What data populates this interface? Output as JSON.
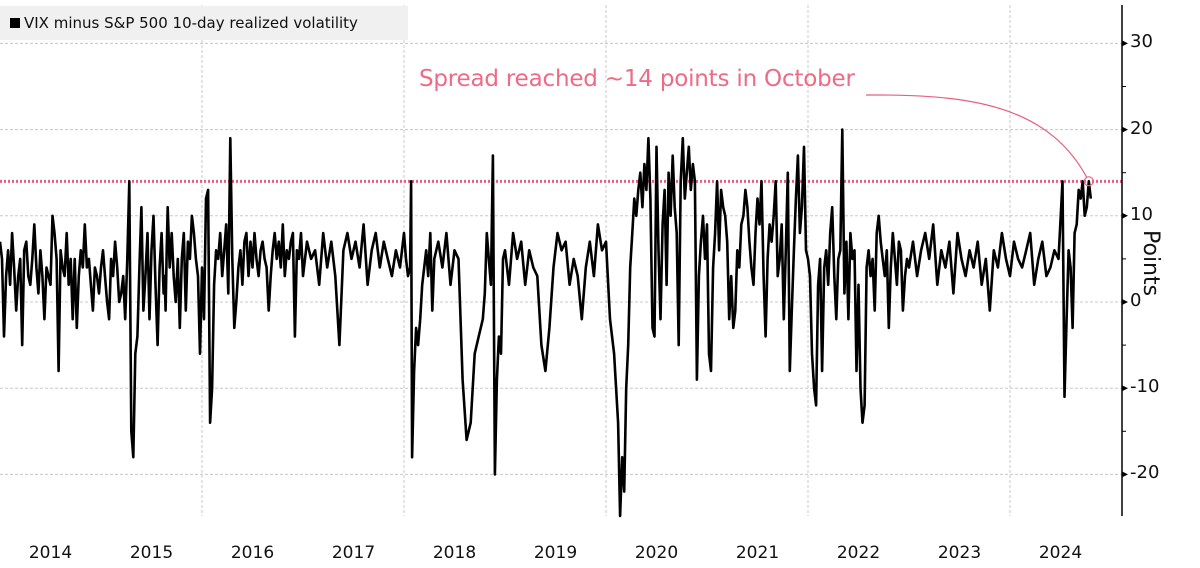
{
  "chart_data": {
    "type": "line",
    "title": "",
    "legend": {
      "entries": [
        "VIX minus S&P 500 10-day realized volatility"
      ],
      "placement": "top-left"
    },
    "xlabel": "",
    "ylabel": "Points",
    "xlim": [
      2014.0,
      2024.95
    ],
    "ylim": [
      -25,
      35
    ],
    "x_ticks": [
      "2014",
      "2015",
      "2016",
      "2017",
      "2018",
      "2019",
      "2020",
      "2021",
      "2022",
      "2023",
      "2024"
    ],
    "y_ticks": [
      30,
      20,
      10,
      0,
      -10,
      -20
    ],
    "y_tick_labels": [
      "30",
      "20",
      "10",
      "0",
      "-10",
      "-20"
    ],
    "grid": true,
    "reference_line": {
      "value": 14,
      "style": "dotted",
      "color": "#e8607e"
    },
    "annotation": {
      "text": "Spread reached ~14 points in October",
      "target": {
        "x": 2024.78,
        "y": 14
      },
      "color": "#e8607e"
    },
    "series": [
      {
        "name": "VIX minus S&P 500 10-day realized volatility",
        "color": "#000000",
        "x": [
          2014.0,
          2014.02,
          2014.04,
          2014.06,
          2014.08,
          2014.1,
          2014.12,
          2014.14,
          2014.16,
          2014.18,
          2014.2,
          2014.22,
          2014.24,
          2014.26,
          2014.28,
          2014.3,
          2014.32,
          2014.34,
          2014.36,
          2014.38,
          2014.4,
          2014.42,
          2014.44,
          2014.46,
          2014.48,
          2014.5,
          2014.52,
          2014.54,
          2014.56,
          2014.58,
          2014.6,
          2014.62,
          2014.64,
          2014.66,
          2014.68,
          2014.7,
          2014.72,
          2014.74,
          2014.76,
          2014.78,
          2014.8,
          2014.82,
          2014.84,
          2014.86,
          2014.88,
          2014.9,
          2014.92,
          2014.94,
          2014.96,
          2014.98,
          2015.0,
          2015.02,
          2015.04,
          2015.06,
          2015.08,
          2015.1,
          2015.12,
          2015.14,
          2015.16,
          2015.18,
          2015.2,
          2015.22,
          2015.24,
          2015.26,
          2015.28,
          2015.3,
          2015.32,
          2015.34,
          2015.36,
          2015.38,
          2015.4,
          2015.42,
          2015.44,
          2015.46,
          2015.48,
          2015.5,
          2015.52,
          2015.54,
          2015.56,
          2015.58,
          2015.6,
          2015.62,
          2015.63,
          2015.64,
          2015.65,
          2015.66,
          2015.68,
          2015.7,
          2015.72,
          2015.74,
          2015.76,
          2015.78,
          2015.8,
          2015.82,
          2015.84,
          2015.86,
          2015.88,
          2015.9,
          2015.92,
          2015.94,
          2015.96,
          2015.98,
          2016.0,
          2016.02,
          2016.04,
          2016.06,
          2016.08,
          2016.1,
          2016.12,
          2016.14,
          2016.16,
          2016.18,
          2016.2,
          2016.22,
          2016.24,
          2016.26,
          2016.28,
          2016.3,
          2016.32,
          2016.34,
          2016.36,
          2016.38,
          2016.4,
          2016.42,
          2016.44,
          2016.46,
          2016.48,
          2016.5,
          2016.52,
          2016.54,
          2016.56,
          2016.58,
          2016.6,
          2016.62,
          2016.64,
          2016.66,
          2016.68,
          2016.7,
          2016.72,
          2016.74,
          2016.76,
          2016.78,
          2016.8,
          2016.82,
          2016.84,
          2016.86,
          2016.88,
          2016.9,
          2016.92,
          2016.94,
          2016.96,
          2016.98,
          2017.0,
          2017.04,
          2017.08,
          2017.12,
          2017.16,
          2017.2,
          2017.24,
          2017.28,
          2017.32,
          2017.36,
          2017.4,
          2017.44,
          2017.48,
          2017.52,
          2017.56,
          2017.6,
          2017.64,
          2017.68,
          2017.72,
          2017.76,
          2017.8,
          2017.84,
          2017.88,
          2017.92,
          2017.96,
          2018.0,
          2018.02,
          2018.04,
          2018.06,
          2018.07,
          2018.08,
          2018.1,
          2018.12,
          2018.14,
          2018.16,
          2018.18,
          2018.2,
          2018.22,
          2018.24,
          2018.26,
          2018.28,
          2018.3,
          2018.34,
          2018.38,
          2018.42,
          2018.46,
          2018.5,
          2018.54,
          2018.58,
          2018.62,
          2018.66,
          2018.7,
          2018.74,
          2018.78,
          2018.8,
          2018.82,
          2018.84,
          2018.86,
          2018.88,
          2018.9,
          2018.92,
          2018.94,
          2018.96,
          2018.98,
          2019.0,
          2019.02,
          2019.04,
          2019.08,
          2019.12,
          2019.16,
          2019.2,
          2019.24,
          2019.28,
          2019.32,
          2019.36,
          2019.4,
          2019.44,
          2019.48,
          2019.52,
          2019.56,
          2019.6,
          2019.64,
          2019.68,
          2019.72,
          2019.76,
          2019.8,
          2019.84,
          2019.88,
          2019.92,
          2019.96,
          2020.0,
          2020.04,
          2020.08,
          2020.12,
          2020.14,
          2020.16,
          2020.18,
          2020.2,
          2020.22,
          2020.24,
          2020.26,
          2020.28,
          2020.3,
          2020.32,
          2020.34,
          2020.36,
          2020.38,
          2020.4,
          2020.42,
          2020.44,
          2020.46,
          2020.48,
          2020.5,
          2020.52,
          2020.54,
          2020.56,
          2020.58,
          2020.6,
          2020.62,
          2020.64,
          2020.66,
          2020.68,
          2020.7,
          2020.72,
          2020.74,
          2020.76,
          2020.78,
          2020.8,
          2020.82,
          2020.84,
          2020.86,
          2020.88,
          2020.9,
          2020.92,
          2020.94,
          2020.96,
          2020.98,
          2021.0,
          2021.02,
          2021.04,
          2021.06,
          2021.08,
          2021.1,
          2021.12,
          2021.14,
          2021.16,
          2021.18,
          2021.2,
          2021.22,
          2021.24,
          2021.26,
          2021.28,
          2021.3,
          2021.32,
          2021.34,
          2021.36,
          2021.38,
          2021.4,
          2021.42,
          2021.44,
          2021.46,
          2021.48,
          2021.5,
          2021.52,
          2021.54,
          2021.56,
          2021.58,
          2021.6,
          2021.62,
          2021.64,
          2021.66,
          2021.68,
          2021.7,
          2021.72,
          2021.74,
          2021.76,
          2021.78,
          2021.8,
          2021.82,
          2021.84,
          2021.86,
          2021.88,
          2021.9,
          2021.92,
          2021.94,
          2021.96,
          2021.98,
          2022.0,
          2022.02,
          2022.04,
          2022.06,
          2022.08,
          2022.1,
          2022.12,
          2022.14,
          2022.16,
          2022.18,
          2022.2,
          2022.22,
          2022.24,
          2022.26,
          2022.28,
          2022.3,
          2022.32,
          2022.34,
          2022.36,
          2022.38,
          2022.4,
          2022.42,
          2022.44,
          2022.46,
          2022.48,
          2022.5,
          2022.52,
          2022.54,
          2022.56,
          2022.58,
          2022.6,
          2022.62,
          2022.64,
          2022.66,
          2022.68,
          2022.7,
          2022.72,
          2022.74,
          2022.76,
          2022.78,
          2022.8,
          2022.82,
          2022.84,
          2022.86,
          2022.88,
          2022.9,
          2022.92,
          2022.94,
          2022.96,
          2022.98,
          2023.0,
          2023.04,
          2023.08,
          2023.12,
          2023.16,
          2023.2,
          2023.24,
          2023.28,
          2023.32,
          2023.36,
          2023.4,
          2023.44,
          2023.48,
          2023.52,
          2023.56,
          2023.6,
          2023.64,
          2023.68,
          2023.72,
          2023.76,
          2023.8,
          2023.84,
          2023.88,
          2023.92,
          2023.96,
          2024.0,
          2024.04,
          2024.08,
          2024.12,
          2024.16,
          2024.2,
          2024.24,
          2024.28,
          2024.32,
          2024.36,
          2024.4,
          2024.44,
          2024.48,
          2024.52,
          2024.54,
          2024.56,
          2024.58,
          2024.6,
          2024.62,
          2024.64,
          2024.66,
          2024.68,
          2024.7,
          2024.72,
          2024.74,
          2024.76,
          2024.78,
          2024.8
        ],
        "y": [
          7,
          5,
          -4,
          3,
          6,
          2,
          8,
          4,
          -1,
          3,
          5,
          -5,
          6,
          7,
          3,
          2,
          5,
          9,
          4,
          1,
          6,
          3,
          -2,
          4,
          3,
          2,
          10,
          8,
          5,
          -8,
          6,
          4,
          3,
          8,
          2,
          5,
          -2,
          5,
          -3,
          3,
          6,
          4,
          9,
          4,
          5,
          2,
          -1,
          4,
          3,
          1,
          4,
          6,
          3,
          0,
          -2,
          5,
          3,
          7,
          4,
          0,
          1,
          3,
          -2,
          5,
          14,
          -15,
          -18,
          -6,
          -4,
          4,
          11,
          -1,
          3,
          8,
          -2,
          6,
          10,
          2,
          -5,
          4,
          8,
          1,
          3,
          -1,
          6,
          11,
          4,
          8,
          3,
          0,
          5,
          -3,
          5,
          8,
          -1,
          7,
          5,
          10,
          8,
          5,
          3,
          -6,
          4,
          -2,
          12,
          13,
          -14,
          -10,
          2,
          6,
          5,
          8,
          3,
          6,
          9,
          1,
          19,
          5,
          -3,
          0,
          4,
          6,
          2,
          7,
          8,
          3,
          7,
          4,
          8,
          5,
          3,
          6,
          7,
          5,
          4,
          -1,
          3,
          6,
          8,
          5,
          7,
          4,
          9,
          3,
          6,
          5,
          7,
          8,
          -4,
          6,
          5,
          8,
          3,
          7,
          5,
          6,
          2,
          8,
          4,
          7,
          3,
          -5,
          6,
          8,
          5,
          7,
          4,
          9,
          2,
          6,
          8,
          4,
          7,
          5,
          3,
          6,
          4,
          8,
          5,
          3,
          4,
          14,
          -18,
          -8,
          -3,
          -5,
          -2,
          2,
          4,
          6,
          3,
          8,
          -1,
          5,
          7,
          4,
          8,
          2,
          6,
          5,
          -9,
          -16,
          -14,
          -6,
          -4,
          -2,
          1,
          8,
          5,
          2,
          17,
          -20,
          -9,
          -4,
          -6,
          5,
          6,
          4,
          2,
          8,
          5,
          7,
          2,
          6,
          4,
          3,
          -5,
          -8,
          -3,
          4,
          8,
          6,
          7,
          2,
          5,
          3,
          -2,
          4,
          7,
          3,
          9,
          6,
          7,
          -2,
          -6,
          -14,
          -25,
          -18,
          -22,
          -10,
          -5,
          4,
          8,
          12,
          10,
          13,
          15,
          11,
          16,
          13,
          19,
          12,
          -3,
          -4,
          18,
          6,
          -2,
          9,
          13,
          2,
          15,
          10,
          17,
          11,
          8,
          -5,
          14,
          19,
          12,
          15,
          18,
          13,
          16,
          14,
          -9,
          3,
          7,
          10,
          5,
          9,
          -6,
          -8,
          4,
          8,
          14,
          6,
          13,
          11,
          10,
          7,
          -2,
          3,
          -3,
          -1,
          6,
          4,
          9,
          10,
          13,
          11,
          7,
          4,
          2,
          8,
          12,
          9,
          14,
          3,
          -4,
          5,
          9,
          7,
          10,
          14,
          3,
          5,
          9,
          -2,
          6,
          15,
          -8,
          -1,
          6,
          12,
          17,
          8,
          11,
          18,
          6,
          5,
          3,
          -6,
          -10,
          -12,
          2,
          5,
          -8,
          4,
          6,
          2,
          8,
          11,
          3,
          -2,
          5,
          6,
          20,
          1,
          7,
          -2,
          8,
          5,
          6,
          -8,
          2,
          -10,
          -14,
          -12,
          4,
          6,
          3,
          5,
          -1,
          8,
          10,
          7,
          5,
          3,
          6,
          -3,
          4,
          8,
          5,
          2,
          7,
          6,
          -1,
          3,
          5,
          4,
          7,
          3,
          6,
          8,
          5,
          9,
          2,
          6,
          4,
          7,
          1,
          8,
          5,
          3,
          6,
          4,
          7,
          2,
          5,
          -1,
          6,
          4,
          8,
          5,
          3,
          7,
          5,
          4,
          6,
          8,
          2,
          5,
          7,
          3,
          4,
          6,
          5,
          14,
          -11,
          -2,
          6,
          4,
          -3,
          8,
          9,
          13,
          12,
          14,
          10,
          11,
          14,
          12
        ]
      }
    ]
  }
}
